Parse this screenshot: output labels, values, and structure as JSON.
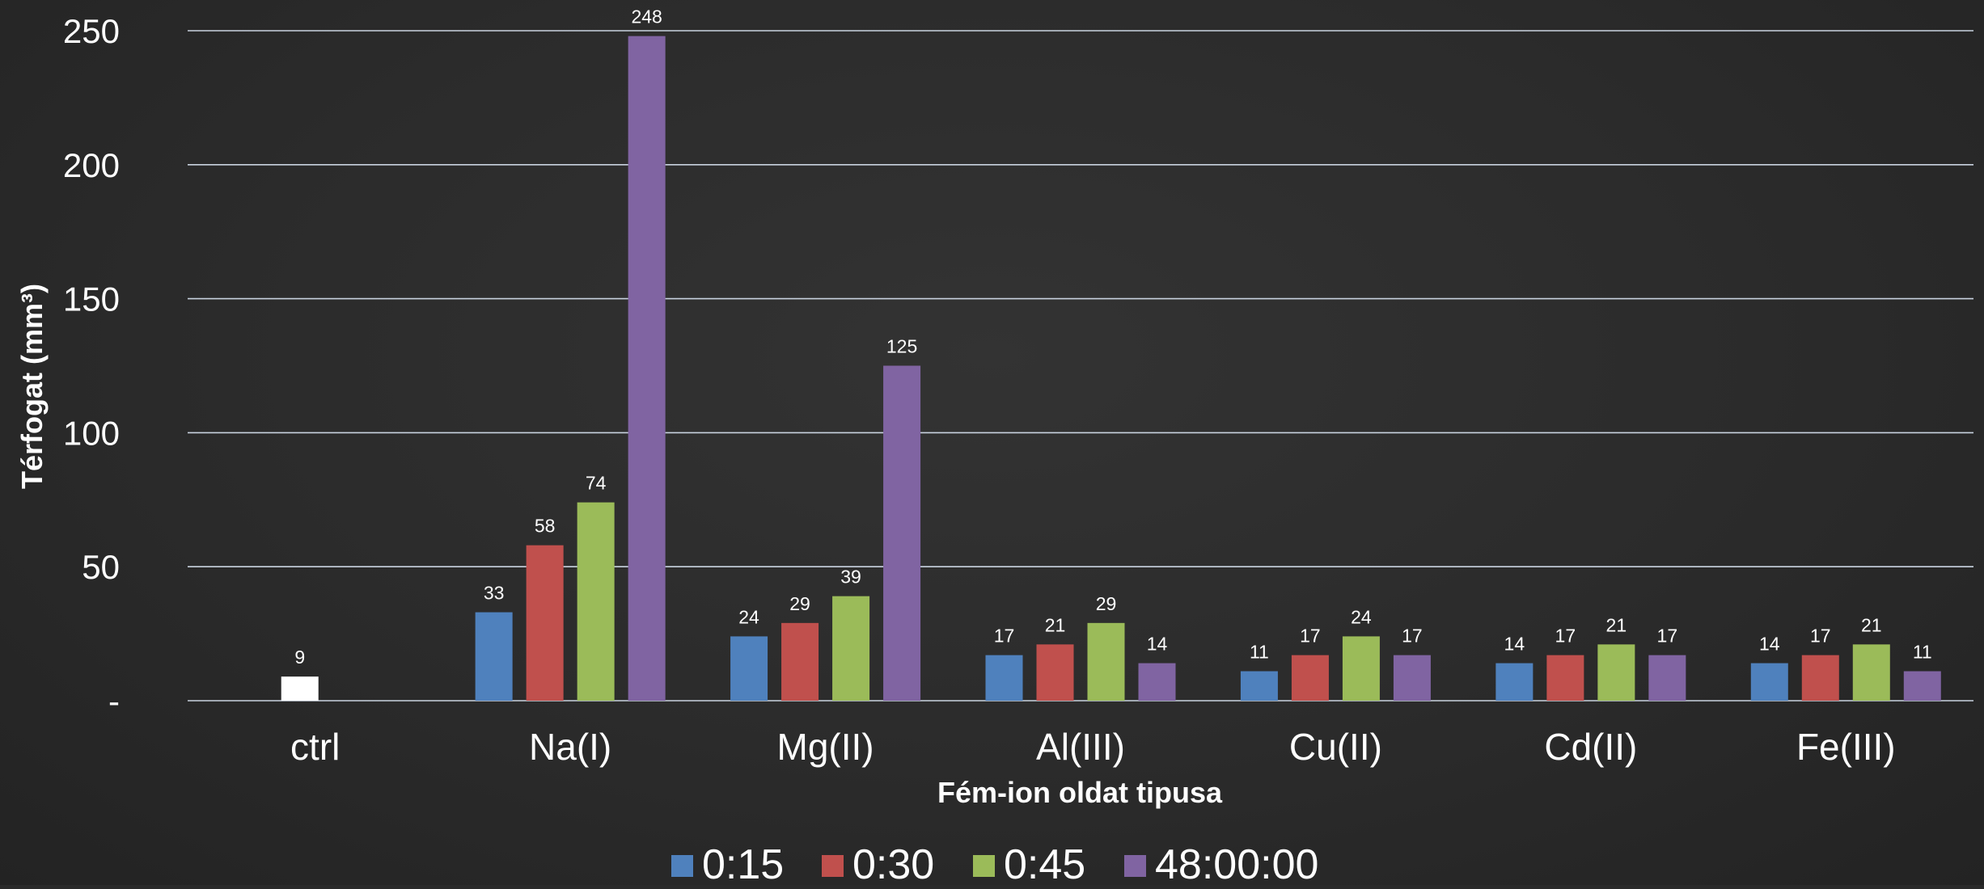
{
  "chart_data": {
    "type": "bar",
    "title": "",
    "xlabel": "Fém-ion oldat tipusa",
    "ylabel": "Térfogat (mm³)",
    "ylim": [
      0,
      250
    ],
    "yticks": [
      0,
      50,
      100,
      150,
      200,
      250
    ],
    "ytick_labels": [
      "-",
      "50",
      "100",
      "150",
      "200",
      "250"
    ],
    "grid": true,
    "legend_position": "bottom",
    "categories": [
      "ctrl",
      "Na(I)",
      "Mg(II)",
      "Al(III)",
      "Cu(II)",
      "Cd(II)",
      "Fe(III)"
    ],
    "ctrl_value": 9,
    "series": [
      {
        "name": "0:15",
        "color": "#4f81bd",
        "values": [
          null,
          33,
          24,
          17,
          11,
          14,
          14
        ]
      },
      {
        "name": "0:30",
        "color": "#c0504d",
        "values": [
          null,
          58,
          29,
          21,
          17,
          17,
          17
        ]
      },
      {
        "name": "0:45",
        "color": "#9bbb59",
        "values": [
          null,
          74,
          39,
          29,
          24,
          21,
          21
        ]
      },
      {
        "name": "48:00:00",
        "color": "#8064a2",
        "values": [
          null,
          248,
          125,
          14,
          17,
          17,
          11
        ]
      }
    ],
    "ctrl_color": "#ffffff"
  }
}
